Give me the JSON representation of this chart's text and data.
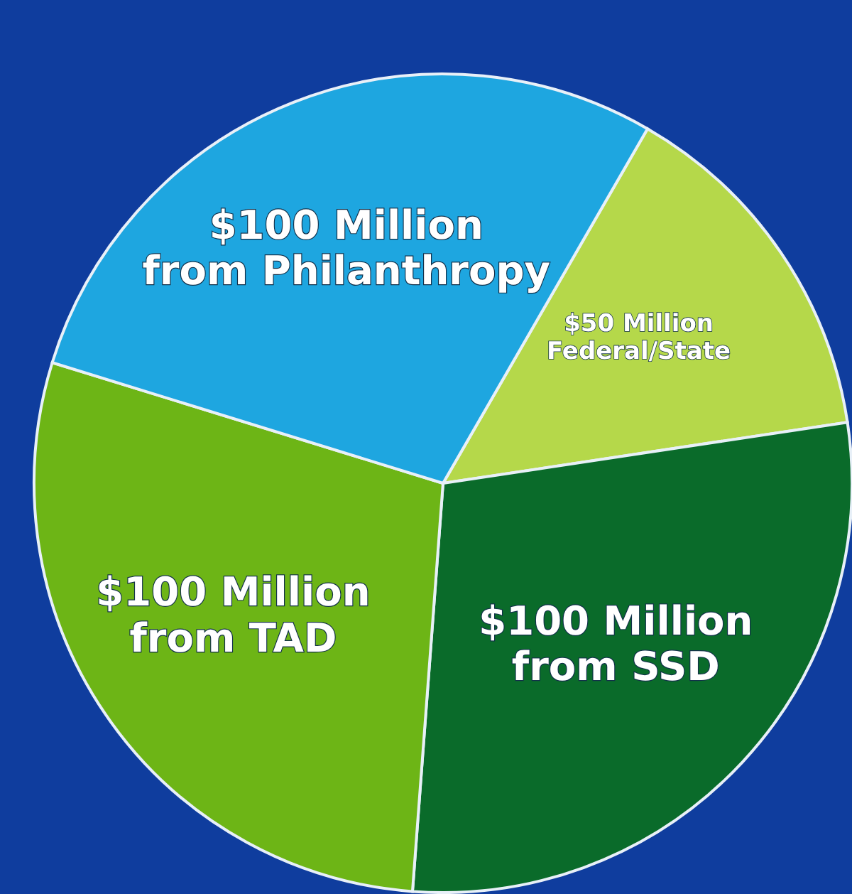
{
  "chart_data": {
    "type": "pie",
    "categories": [
      "Federal/State",
      "from SSD",
      "from TAD",
      "from Philanthropy"
    ],
    "values": [
      50,
      100,
      100,
      100
    ],
    "value_labels": [
      "$50 Million",
      "$100 Million",
      "$100 Million",
      "$100 Million"
    ],
    "colors": [
      "#b5d84a",
      "#0a6b2a",
      "#6db516",
      "#1ea6e0"
    ]
  }
}
